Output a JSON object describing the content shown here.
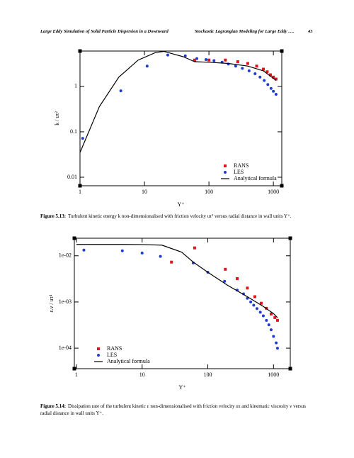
{
  "header": {
    "left": "Large Eddy Simulation of Solid Particle Dispersion in a Downward",
    "right": "Stochastic Lagrangian Modeling for Large Eddy ….",
    "page": "45"
  },
  "chart_data": [
    {
      "type": "line",
      "x_label": "Y⁺",
      "y_label": "k / uτ²",
      "log_x": true,
      "log_y": true,
      "legend": "lower right",
      "xlim": [
        1,
        1350
      ],
      "ylim": [
        0.0065,
        6
      ],
      "xticks": [
        1,
        10,
        100,
        1000
      ],
      "yticks": [
        0.01,
        0.1,
        1
      ],
      "series": [
        {
          "name": "RANS",
          "color": "#e0141e",
          "marker": "square",
          "x": [
            60,
            100,
            180,
            280,
            400,
            550,
            700,
            800,
            900,
            1000,
            1100
          ],
          "values": [
            3.8,
            3.8,
            3.8,
            3.5,
            3.2,
            2.8,
            2.4,
            2.1,
            1.8,
            1.6,
            1.45
          ]
        },
        {
          "name": "LES",
          "color": "#1e3cd2",
          "marker": "circle",
          "x": [
            1.1,
            4.3,
            11,
            23,
            43,
            65,
            90,
            120,
            160,
            200,
            260,
            330,
            420,
            520,
            620,
            720,
            820,
            920,
            1000,
            1100
          ],
          "values": [
            0.072,
            0.8,
            2.8,
            4.9,
            4.7,
            4.1,
            3.9,
            3.7,
            3.4,
            3.1,
            2.8,
            2.5,
            2.2,
            1.9,
            1.6,
            1.35,
            1.1,
            0.9,
            0.78,
            0.67
          ]
        },
        {
          "name": "Analytical formula",
          "color": "#000000",
          "marker": "line",
          "x": [
            1,
            2,
            4,
            8,
            15,
            20,
            40,
            60,
            100,
            200,
            400,
            700,
            1000,
            1100
          ],
          "values": [
            0.035,
            0.36,
            1.6,
            3.8,
            5.6,
            5.9,
            4.5,
            3.5,
            3.4,
            3.2,
            2.8,
            2.2,
            1.5,
            1.35
          ]
        }
      ]
    },
    {
      "type": "line",
      "x_label": "Y⁺",
      "y_label": "ε.ν / uτ⁴",
      "log_x": true,
      "log_y": true,
      "legend": "lower left",
      "xlim": [
        0.93,
        1800
      ],
      "ylim": [
        3.6e-05,
        0.024
      ],
      "xticks": [
        1,
        10,
        100,
        1000
      ],
      "yticks": [
        {
          "value": 0.0001,
          "label": "1e-04"
        },
        {
          "value": 0.001,
          "label": "1e-03"
        },
        {
          "value": 0.01,
          "label": "1e-02"
        }
      ],
      "series": [
        {
          "name": "RANS",
          "color": "#e0141e",
          "marker": "square",
          "x": [
            28,
            63,
            185,
            280,
            400,
            520,
            650,
            780,
            920,
            1050,
            1150
          ],
          "values": [
            0.0073,
            0.0148,
            0.0051,
            0.0032,
            0.002,
            0.0013,
            0.00094,
            0.00073,
            0.00055,
            0.00046,
            0.0004
          ]
        },
        {
          "name": "LES",
          "color": "#1e3cd2",
          "marker": "circle",
          "x": [
            1.3,
            5,
            10,
            19,
            60,
            100,
            180,
            280,
            350,
            400,
            450,
            500,
            560,
            630,
            700,
            780,
            850,
            920,
            1000,
            1100,
            1150
          ],
          "values": [
            0.0133,
            0.0128,
            0.0115,
            0.0097,
            0.007,
            0.0044,
            0.0028,
            0.0018,
            0.0015,
            0.0012,
            0.001,
            0.00085,
            0.00072,
            0.0006,
            0.0005,
            0.0004,
            0.00032,
            0.00025,
            0.00018,
            0.00013,
            0.0001
          ]
        },
        {
          "name": "Analytical formula",
          "color": "#000000",
          "marker": "line",
          "x": [
            1,
            5,
            10,
            20,
            40,
            60,
            100,
            200,
            400,
            700,
            1000,
            1150
          ],
          "values": [
            0.0176,
            0.0176,
            0.0175,
            0.017,
            0.012,
            0.0073,
            0.0044,
            0.0023,
            0.0013,
            0.0008,
            0.00056,
            0.00046
          ]
        }
      ]
    }
  ],
  "captions": [
    {
      "label": "Figure 5.13:",
      "text": "Turbulent kinetic energy k non-dimensionalised with friction velocity uτ² versus radial distance in wall units Y⁺."
    },
    {
      "label": "Figure 5.14:",
      "text": "Dissipation rate of the turbulent kinetic ε non-dimensionalised with friction velocity uτ and kinematic viscosity ν versus radial distance in wall units Y⁺."
    }
  ]
}
